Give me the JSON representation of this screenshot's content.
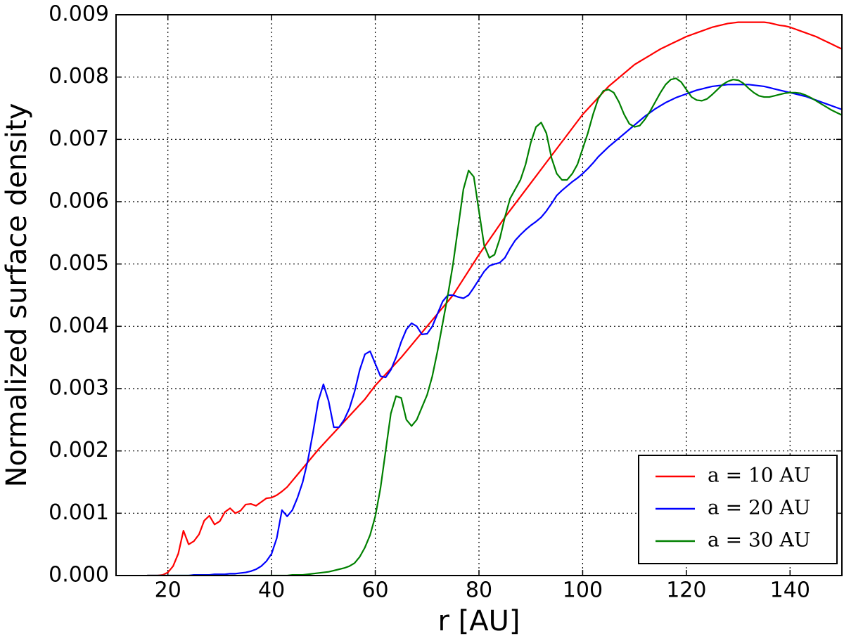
{
  "chart_data": {
    "type": "line",
    "xlabel": "r [AU]",
    "ylabel": "Normalized surface density",
    "xlim": [
      10,
      150
    ],
    "ylim": [
      0,
      0.009
    ],
    "xticks": [
      20,
      40,
      60,
      80,
      100,
      120,
      140
    ],
    "yticks": [
      {
        "value": 0,
        "label": "0.000"
      },
      0.001,
      0.002,
      0.003,
      0.004,
      0.005,
      0.006,
      0.007,
      0.008,
      0.009
    ],
    "grid": true,
    "legend": "lower right",
    "x": [
      16,
      17,
      18,
      19,
      20,
      21,
      22,
      23,
      24,
      25,
      26,
      27,
      28,
      29,
      30,
      31,
      32,
      33,
      34,
      35,
      36,
      37,
      38,
      39,
      40,
      41,
      42,
      43,
      44,
      45,
      46,
      47,
      48,
      49,
      50,
      51,
      52,
      53,
      54,
      55,
      56,
      57,
      58,
      59,
      60,
      61,
      62,
      63,
      64,
      65,
      66,
      67,
      68,
      69,
      70,
      71,
      72,
      73,
      74,
      75,
      76,
      77,
      78,
      79,
      80,
      81,
      82,
      83,
      84,
      85,
      86,
      87,
      88,
      89,
      90,
      91,
      92,
      93,
      94,
      95,
      96,
      97,
      98,
      99,
      100,
      101,
      102,
      103,
      104,
      105,
      106,
      107,
      108,
      109,
      110,
      111,
      112,
      113,
      114,
      115,
      116,
      117,
      118,
      119,
      120,
      121,
      122,
      123,
      124,
      125,
      126,
      127,
      128,
      129,
      130,
      131,
      132,
      133,
      134,
      135,
      136,
      137,
      138,
      139,
      140,
      141,
      142,
      143,
      144,
      145,
      146,
      147,
      148,
      149,
      150
    ],
    "series": [
      {
        "name": "a = 10 AU",
        "color": "#ff0000",
        "values": [
          0,
          0,
          0,
          1e-05,
          5e-05,
          0.00015,
          0.00035,
          0.00072,
          0.0005,
          0.00055,
          0.00066,
          0.00088,
          0.00096,
          0.00082,
          0.00087,
          0.00102,
          0.00108,
          0.001,
          0.00104,
          0.00114,
          0.00115,
          0.00112,
          0.00118,
          0.00124,
          0.00125,
          0.00129,
          0.00135,
          0.00142,
          0.00152,
          0.00162,
          0.00172,
          0.00182,
          0.00192,
          0.00202,
          0.00211,
          0.0022,
          0.00229,
          0.00238,
          0.00247,
          0.00256,
          0.00265,
          0.00274,
          0.00283,
          0.00294,
          0.00305,
          0.00314,
          0.00323,
          0.00332,
          0.00341,
          0.0035,
          0.0036,
          0.0037,
          0.0038,
          0.0039,
          0.004,
          0.0041,
          0.0042,
          0.0043,
          0.0044,
          0.0045,
          0.00463,
          0.00476,
          0.00489,
          0.00502,
          0.00515,
          0.00527,
          0.00539,
          0.00551,
          0.00563,
          0.00575,
          0.00586,
          0.00597,
          0.00608,
          0.00619,
          0.0063,
          0.00641,
          0.00652,
          0.00663,
          0.00674,
          0.00685,
          0.00696,
          0.00707,
          0.00718,
          0.00729,
          0.0074,
          0.00749,
          0.00758,
          0.00767,
          0.00776,
          0.00785,
          0.00792,
          0.00799,
          0.00806,
          0.00813,
          0.0082,
          0.00825,
          0.0083,
          0.00835,
          0.0084,
          0.00845,
          0.00849,
          0.00853,
          0.00857,
          0.00861,
          0.00865,
          0.00868,
          0.00871,
          0.00874,
          0.00877,
          0.0088,
          0.00882,
          0.00884,
          0.00886,
          0.00887,
          0.00888,
          0.00888,
          0.00888,
          0.00888,
          0.00888,
          0.00888,
          0.00887,
          0.00885,
          0.00883,
          0.00882,
          0.0088,
          0.00877,
          0.00874,
          0.00871,
          0.00868,
          0.00865,
          0.00861,
          0.00857,
          0.00853,
          0.00849,
          0.00845
        ]
      },
      {
        "name": "a = 20 AU",
        "color": "#0000ff",
        "values": [
          0,
          0,
          0,
          0,
          0,
          0,
          0,
          0,
          0,
          1e-05,
          1e-05,
          1e-05,
          1e-05,
          2e-05,
          2e-05,
          2e-05,
          3e-05,
          3e-05,
          4e-05,
          5e-05,
          7e-05,
          0.0001,
          0.00015,
          0.00023,
          0.00035,
          0.0006,
          0.00105,
          0.00095,
          0.00105,
          0.00125,
          0.0015,
          0.00185,
          0.0023,
          0.0028,
          0.00307,
          0.0028,
          0.00238,
          0.00238,
          0.0025,
          0.00268,
          0.00295,
          0.0033,
          0.00355,
          0.0036,
          0.0034,
          0.0032,
          0.00318,
          0.0033,
          0.0035,
          0.00375,
          0.00395,
          0.00405,
          0.004,
          0.00387,
          0.00388,
          0.004,
          0.0042,
          0.0044,
          0.0045,
          0.0045,
          0.00447,
          0.00445,
          0.0045,
          0.00462,
          0.00475,
          0.00488,
          0.00497,
          0.005,
          0.00502,
          0.0051,
          0.00525,
          0.00538,
          0.00547,
          0.00555,
          0.00562,
          0.00568,
          0.00575,
          0.00585,
          0.00597,
          0.0061,
          0.00618,
          0.00625,
          0.00632,
          0.00638,
          0.00645,
          0.00653,
          0.00662,
          0.00672,
          0.0068,
          0.00688,
          0.00695,
          0.00702,
          0.00709,
          0.00716,
          0.00723,
          0.0073,
          0.00737,
          0.00743,
          0.00749,
          0.00754,
          0.00759,
          0.00763,
          0.00767,
          0.0077,
          0.00773,
          0.00776,
          0.00779,
          0.00781,
          0.00783,
          0.00785,
          0.00786,
          0.00787,
          0.00788,
          0.00788,
          0.00788,
          0.00788,
          0.00788,
          0.00787,
          0.00786,
          0.00785,
          0.00783,
          0.00781,
          0.00779,
          0.00777,
          0.00775,
          0.00773,
          0.00771,
          0.00769,
          0.00766,
          0.00763,
          0.0076,
          0.00757,
          0.00754,
          0.00751,
          0.00748
        ]
      },
      {
        "name": "a = 30 AU",
        "color": "#008000",
        "values": [
          0,
          0,
          0,
          0,
          0,
          0,
          0,
          0,
          0,
          0,
          0,
          0,
          0,
          0,
          0,
          0,
          0,
          0,
          0,
          0,
          0,
          0,
          0,
          0,
          0,
          0,
          0,
          0,
          1e-05,
          1e-05,
          1e-05,
          2e-05,
          3e-05,
          4e-05,
          5e-05,
          6e-05,
          8e-05,
          0.0001,
          0.00012,
          0.00015,
          0.0002,
          0.0003,
          0.00045,
          0.00065,
          0.00095,
          0.0014,
          0.002,
          0.0026,
          0.00288,
          0.00285,
          0.0025,
          0.0024,
          0.0025,
          0.0027,
          0.0029,
          0.0032,
          0.0036,
          0.00405,
          0.0045,
          0.005,
          0.0056,
          0.0062,
          0.0065,
          0.0064,
          0.00585,
          0.0053,
          0.0051,
          0.00515,
          0.0054,
          0.00575,
          0.00605,
          0.0062,
          0.00635,
          0.0066,
          0.00695,
          0.0072,
          0.00727,
          0.0071,
          0.0067,
          0.00645,
          0.00635,
          0.00635,
          0.00645,
          0.0066,
          0.00685,
          0.0071,
          0.0074,
          0.00765,
          0.00778,
          0.0078,
          0.00775,
          0.0076,
          0.0074,
          0.00725,
          0.0072,
          0.00722,
          0.00732,
          0.00745,
          0.0076,
          0.00775,
          0.00788,
          0.00796,
          0.00798,
          0.00792,
          0.0078,
          0.00768,
          0.00763,
          0.00762,
          0.00765,
          0.00772,
          0.0078,
          0.00788,
          0.00793,
          0.00796,
          0.00795,
          0.0079,
          0.00782,
          0.00775,
          0.0077,
          0.00768,
          0.00768,
          0.0077,
          0.00772,
          0.00774,
          0.00775,
          0.00775,
          0.00774,
          0.00771,
          0.00767,
          0.00762,
          0.00757,
          0.00752,
          0.00747,
          0.00743,
          0.00739
        ]
      }
    ]
  }
}
